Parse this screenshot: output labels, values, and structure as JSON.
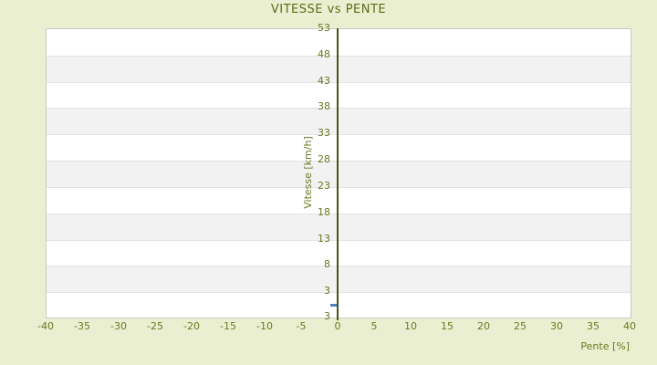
{
  "chart_data": {
    "type": "scatter",
    "title": "VITESSE vs PENTE",
    "xlabel": "Pente [%]",
    "ylabel": "Vitesse [km/h]",
    "x_ticks": [
      -40,
      -35,
      -30,
      -25,
      -20,
      -15,
      -10,
      -5,
      0,
      5,
      10,
      15,
      20,
      25,
      30,
      35,
      40
    ],
    "y_ticks": [
      53,
      48,
      43,
      38,
      33,
      28,
      23,
      18,
      13,
      8,
      3
    ],
    "y_bottom_edge_label": "3",
    "xlim": [
      -40,
      40
    ],
    "ylim": [
      -1.8,
      53
    ],
    "grid": "horizontal-bands-alternating",
    "legend": "none",
    "axis_line_at_x": 0,
    "points": [
      {
        "x": -0.6,
        "y": 0.4
      }
    ],
    "marker_style": "horizontal-dash",
    "colors": {
      "background": "#eaefd1",
      "text": "#6b7822",
      "title_text": "#5d6b16",
      "axis_line": "#4a5511",
      "marker": "#4e7fc0",
      "band_light": "#ffffff",
      "band_dark": "#f2f2f2",
      "gridline": "#e3e3e3",
      "plot_border": "#c9c9c9"
    }
  }
}
